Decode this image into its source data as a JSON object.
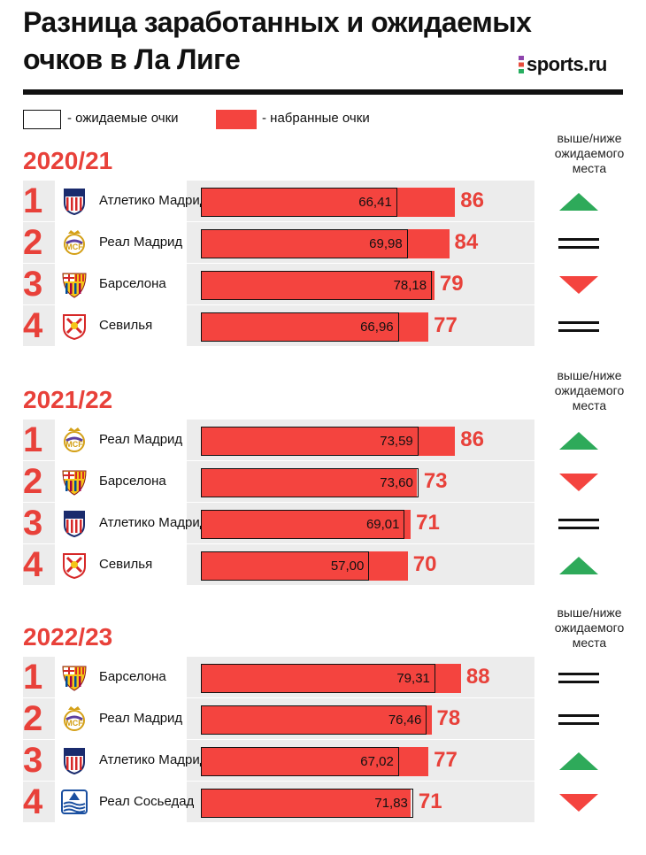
{
  "title_line1": "Разница заработанных и ожидаемых",
  "title_line2": "очков в Ла Лиге",
  "brand": "sports.ru",
  "legend": {
    "expected": "- ожидаемые очки",
    "actual": "- набранные очки"
  },
  "colors": {
    "accent": "#e8413a",
    "bar": "#f4443f",
    "up": "#2eaa5a",
    "down": "#f4443f"
  },
  "chart_data": {
    "type": "bar",
    "title": "Разница заработанных и ожидаемых очков в Ла Лиге",
    "xlim": [
      0,
      100
    ],
    "series_names": [
      "ожидаемые очки",
      "набранные очки"
    ],
    "place_header": "выше/ниже ожидаемого места",
    "seasons": [
      {
        "label": "2020/21",
        "rows": [
          {
            "rank": "1",
            "team": "Атлетико Мадрид",
            "logo": "atletico-logo",
            "expected": 66.41,
            "expected_label": "66,41",
            "actual": 86,
            "actual_label": "86",
            "trend": "up"
          },
          {
            "rank": "2",
            "team": "Реал Мадрид",
            "logo": "real-logo",
            "expected": 69.98,
            "expected_label": "69,98",
            "actual": 84,
            "actual_label": "84",
            "trend": "same"
          },
          {
            "rank": "3",
            "team": "Барселона",
            "logo": "barca-logo",
            "expected": 78.18,
            "expected_label": "78,18",
            "actual": 79,
            "actual_label": "79",
            "trend": "down"
          },
          {
            "rank": "4",
            "team": "Севилья",
            "logo": "sevilla-logo",
            "expected": 66.96,
            "expected_label": "66,96",
            "actual": 77,
            "actual_label": "77",
            "trend": "same"
          }
        ]
      },
      {
        "label": "2021/22",
        "rows": [
          {
            "rank": "1",
            "team": "Реал Мадрид",
            "logo": "real-logo",
            "expected": 73.59,
            "expected_label": "73,59",
            "actual": 86,
            "actual_label": "86",
            "trend": "up"
          },
          {
            "rank": "2",
            "team": "Барселона",
            "logo": "barca-logo",
            "expected": 73.6,
            "expected_label": "73,60",
            "actual": 73,
            "actual_label": "73",
            "trend": "down"
          },
          {
            "rank": "3",
            "team": "Атлетико Мадрид",
            "logo": "atletico-logo",
            "expected": 69.01,
            "expected_label": "69,01",
            "actual": 71,
            "actual_label": "71",
            "trend": "same"
          },
          {
            "rank": "4",
            "team": "Севилья",
            "logo": "sevilla-logo",
            "expected": 57.0,
            "expected_label": "57,00",
            "actual": 70,
            "actual_label": "70",
            "trend": "up"
          }
        ]
      },
      {
        "label": "2022/23",
        "rows": [
          {
            "rank": "1",
            "team": "Барселона",
            "logo": "barca-logo",
            "expected": 79.31,
            "expected_label": "79,31",
            "actual": 88,
            "actual_label": "88",
            "trend": "same"
          },
          {
            "rank": "2",
            "team": "Реал Мадрид",
            "logo": "real-logo",
            "expected": 76.46,
            "expected_label": "76,46",
            "actual": 78,
            "actual_label": "78",
            "trend": "same"
          },
          {
            "rank": "3",
            "team": "Атлетико Мадрид",
            "logo": "atletico-logo",
            "expected": 67.02,
            "expected_label": "67,02",
            "actual": 77,
            "actual_label": "77",
            "trend": "up"
          },
          {
            "rank": "4",
            "team": "Реал Сосьедад",
            "logo": "sociedad-logo",
            "expected": 71.83,
            "expected_label": "71,83",
            "actual": 71,
            "actual_label": "71",
            "trend": "down"
          }
        ]
      }
    ]
  }
}
